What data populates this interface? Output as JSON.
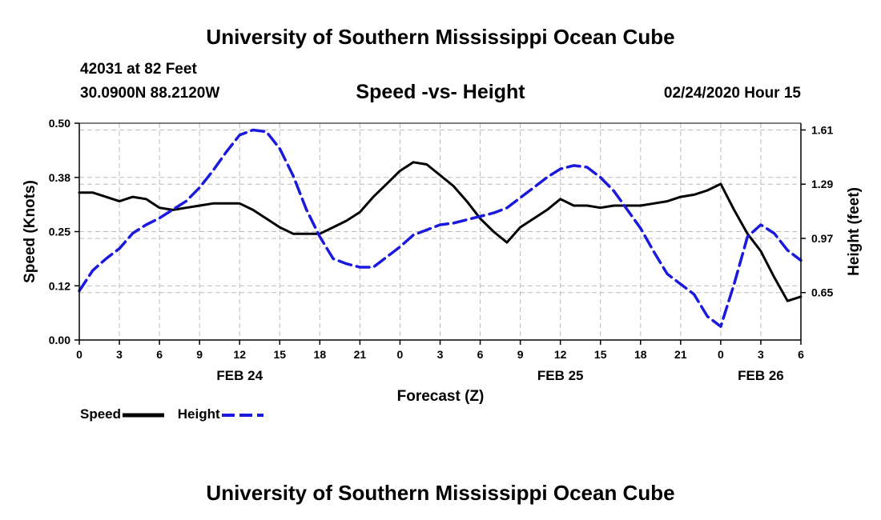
{
  "header": {
    "title": "University of Southern Mississippi Ocean Cube",
    "station": "42031 at 82 Feet",
    "coords": "30.0900N 88.2120W",
    "subtitle": "Speed -vs- Height",
    "datetime": "02/24/2020 Hour 15"
  },
  "footer": {
    "title": "University of Southern Mississippi Ocean Cube"
  },
  "legend": {
    "speed_label": "Speed",
    "height_label": "Height"
  },
  "colors": {
    "speed": "#000000",
    "height": "#1a1adc",
    "grid": "#bbbbbb"
  },
  "chart_data": {
    "type": "line",
    "title": "Speed -vs- Height",
    "xlabel": "Forecast (Z)",
    "ylabel_left": "Speed (Knots)",
    "ylabel_right": "Height (feet)",
    "xlim": [
      0,
      54
    ],
    "ylim_left": [
      0.0,
      0.5
    ],
    "ylim_right": [
      0.37,
      1.65
    ],
    "x_ticks": [
      0,
      3,
      6,
      9,
      12,
      15,
      18,
      21,
      24,
      27,
      30,
      33,
      36,
      39,
      42,
      45,
      48,
      51,
      54
    ],
    "x_tick_labels": [
      "0",
      "3",
      "6",
      "9",
      "12",
      "15",
      "18",
      "21",
      "0",
      "3",
      "6",
      "9",
      "12",
      "15",
      "18",
      "21",
      "0",
      "3",
      "6"
    ],
    "date_labels": [
      {
        "x": 12,
        "label": "FEB 24"
      },
      {
        "x": 36,
        "label": "FEB 25"
      },
      {
        "x": 51,
        "label": "FEB 26"
      }
    ],
    "y_left_ticks": [
      0.0,
      0.125,
      0.25,
      0.375,
      0.5
    ],
    "y_left_tick_labels": [
      "0.00",
      "0.12",
      "0.25",
      "0.38",
      "0.50"
    ],
    "y_right_ticks": [
      0.65,
      0.97,
      1.29,
      1.61
    ],
    "y_right_tick_labels": [
      "0.65",
      "0.97",
      "1.29",
      "1.61"
    ],
    "grid": true,
    "legend_position": "bottom-left",
    "series": [
      {
        "name": "Speed",
        "axis": "left",
        "style": "solid",
        "x": [
          0,
          1,
          2,
          3,
          4,
          5,
          6,
          7,
          8,
          9,
          10,
          11,
          12,
          13,
          14,
          15,
          16,
          17,
          18,
          19,
          20,
          21,
          22,
          23,
          24,
          25,
          26,
          27,
          28,
          29,
          30,
          31,
          32,
          33,
          34,
          35,
          36,
          37,
          38,
          39,
          40,
          41,
          42,
          43,
          44,
          45,
          46,
          47,
          48,
          49,
          50,
          51,
          52,
          53,
          54
        ],
        "values": [
          0.34,
          0.34,
          0.33,
          0.32,
          0.33,
          0.325,
          0.305,
          0.3,
          0.305,
          0.31,
          0.315,
          0.315,
          0.315,
          0.3,
          0.28,
          0.26,
          0.245,
          0.245,
          0.245,
          0.26,
          0.275,
          0.295,
          0.33,
          0.36,
          0.39,
          0.41,
          0.405,
          0.38,
          0.355,
          0.32,
          0.28,
          0.25,
          0.225,
          0.26,
          0.28,
          0.3,
          0.325,
          0.31,
          0.31,
          0.305,
          0.31,
          0.31,
          0.31,
          0.315,
          0.32,
          0.33,
          0.335,
          0.345,
          0.36,
          0.3,
          0.245,
          0.205,
          0.145,
          0.09,
          0.1
        ]
      },
      {
        "name": "Height",
        "axis": "right",
        "style": "dashed",
        "x": [
          0,
          1,
          2,
          3,
          4,
          5,
          6,
          7,
          8,
          9,
          10,
          11,
          12,
          13,
          14,
          15,
          16,
          17,
          18,
          19,
          20,
          21,
          22,
          23,
          24,
          25,
          26,
          27,
          28,
          29,
          30,
          31,
          32,
          33,
          34,
          35,
          36,
          37,
          38,
          39,
          40,
          41,
          42,
          43,
          44,
          45,
          46,
          47,
          48,
          49,
          50,
          51,
          52,
          53,
          54
        ],
        "values": [
          0.66,
          0.78,
          0.85,
          0.91,
          1.0,
          1.05,
          1.09,
          1.14,
          1.19,
          1.27,
          1.37,
          1.48,
          1.58,
          1.61,
          1.6,
          1.5,
          1.34,
          1.14,
          0.98,
          0.85,
          0.82,
          0.8,
          0.8,
          0.86,
          0.92,
          0.99,
          1.02,
          1.05,
          1.06,
          1.08,
          1.1,
          1.12,
          1.15,
          1.21,
          1.27,
          1.33,
          1.38,
          1.4,
          1.39,
          1.33,
          1.25,
          1.14,
          1.03,
          0.89,
          0.76,
          0.7,
          0.64,
          0.51,
          0.45,
          0.7,
          0.98,
          1.05,
          1.0,
          0.9,
          0.84
        ]
      }
    ]
  }
}
